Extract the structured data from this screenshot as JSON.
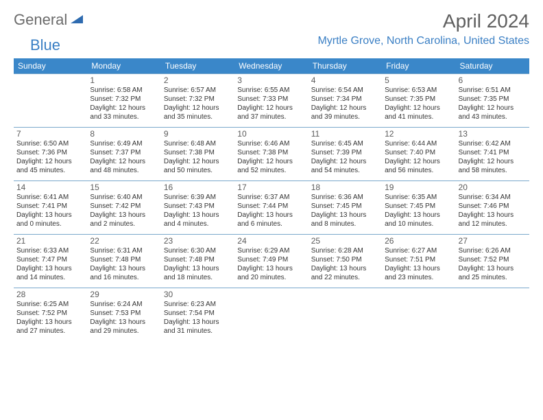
{
  "logo": {
    "text1": "General",
    "text2": "Blue"
  },
  "title": "April 2024",
  "location": "Myrtle Grove, North Carolina, United States",
  "colors": {
    "header_bg": "#3a87c9",
    "header_text": "#ffffff",
    "border": "#7aa8cc",
    "title_text": "#5f5f5f",
    "location_text": "#3a7fc4",
    "logo_gray": "#6b6b6b",
    "logo_blue": "#3a7fc4"
  },
  "weekdays": [
    "Sunday",
    "Monday",
    "Tuesday",
    "Wednesday",
    "Thursday",
    "Friday",
    "Saturday"
  ],
  "weeks": [
    [
      {
        "day": "",
        "sunrise": "",
        "sunset": "",
        "daylight1": "",
        "daylight2": ""
      },
      {
        "day": "1",
        "sunrise": "Sunrise: 6:58 AM",
        "sunset": "Sunset: 7:32 PM",
        "daylight1": "Daylight: 12 hours",
        "daylight2": "and 33 minutes."
      },
      {
        "day": "2",
        "sunrise": "Sunrise: 6:57 AM",
        "sunset": "Sunset: 7:32 PM",
        "daylight1": "Daylight: 12 hours",
        "daylight2": "and 35 minutes."
      },
      {
        "day": "3",
        "sunrise": "Sunrise: 6:55 AM",
        "sunset": "Sunset: 7:33 PM",
        "daylight1": "Daylight: 12 hours",
        "daylight2": "and 37 minutes."
      },
      {
        "day": "4",
        "sunrise": "Sunrise: 6:54 AM",
        "sunset": "Sunset: 7:34 PM",
        "daylight1": "Daylight: 12 hours",
        "daylight2": "and 39 minutes."
      },
      {
        "day": "5",
        "sunrise": "Sunrise: 6:53 AM",
        "sunset": "Sunset: 7:35 PM",
        "daylight1": "Daylight: 12 hours",
        "daylight2": "and 41 minutes."
      },
      {
        "day": "6",
        "sunrise": "Sunrise: 6:51 AM",
        "sunset": "Sunset: 7:35 PM",
        "daylight1": "Daylight: 12 hours",
        "daylight2": "and 43 minutes."
      }
    ],
    [
      {
        "day": "7",
        "sunrise": "Sunrise: 6:50 AM",
        "sunset": "Sunset: 7:36 PM",
        "daylight1": "Daylight: 12 hours",
        "daylight2": "and 45 minutes."
      },
      {
        "day": "8",
        "sunrise": "Sunrise: 6:49 AM",
        "sunset": "Sunset: 7:37 PM",
        "daylight1": "Daylight: 12 hours",
        "daylight2": "and 48 minutes."
      },
      {
        "day": "9",
        "sunrise": "Sunrise: 6:48 AM",
        "sunset": "Sunset: 7:38 PM",
        "daylight1": "Daylight: 12 hours",
        "daylight2": "and 50 minutes."
      },
      {
        "day": "10",
        "sunrise": "Sunrise: 6:46 AM",
        "sunset": "Sunset: 7:38 PM",
        "daylight1": "Daylight: 12 hours",
        "daylight2": "and 52 minutes."
      },
      {
        "day": "11",
        "sunrise": "Sunrise: 6:45 AM",
        "sunset": "Sunset: 7:39 PM",
        "daylight1": "Daylight: 12 hours",
        "daylight2": "and 54 minutes."
      },
      {
        "day": "12",
        "sunrise": "Sunrise: 6:44 AM",
        "sunset": "Sunset: 7:40 PM",
        "daylight1": "Daylight: 12 hours",
        "daylight2": "and 56 minutes."
      },
      {
        "day": "13",
        "sunrise": "Sunrise: 6:42 AM",
        "sunset": "Sunset: 7:41 PM",
        "daylight1": "Daylight: 12 hours",
        "daylight2": "and 58 minutes."
      }
    ],
    [
      {
        "day": "14",
        "sunrise": "Sunrise: 6:41 AM",
        "sunset": "Sunset: 7:41 PM",
        "daylight1": "Daylight: 13 hours",
        "daylight2": "and 0 minutes."
      },
      {
        "day": "15",
        "sunrise": "Sunrise: 6:40 AM",
        "sunset": "Sunset: 7:42 PM",
        "daylight1": "Daylight: 13 hours",
        "daylight2": "and 2 minutes."
      },
      {
        "day": "16",
        "sunrise": "Sunrise: 6:39 AM",
        "sunset": "Sunset: 7:43 PM",
        "daylight1": "Daylight: 13 hours",
        "daylight2": "and 4 minutes."
      },
      {
        "day": "17",
        "sunrise": "Sunrise: 6:37 AM",
        "sunset": "Sunset: 7:44 PM",
        "daylight1": "Daylight: 13 hours",
        "daylight2": "and 6 minutes."
      },
      {
        "day": "18",
        "sunrise": "Sunrise: 6:36 AM",
        "sunset": "Sunset: 7:45 PM",
        "daylight1": "Daylight: 13 hours",
        "daylight2": "and 8 minutes."
      },
      {
        "day": "19",
        "sunrise": "Sunrise: 6:35 AM",
        "sunset": "Sunset: 7:45 PM",
        "daylight1": "Daylight: 13 hours",
        "daylight2": "and 10 minutes."
      },
      {
        "day": "20",
        "sunrise": "Sunrise: 6:34 AM",
        "sunset": "Sunset: 7:46 PM",
        "daylight1": "Daylight: 13 hours",
        "daylight2": "and 12 minutes."
      }
    ],
    [
      {
        "day": "21",
        "sunrise": "Sunrise: 6:33 AM",
        "sunset": "Sunset: 7:47 PM",
        "daylight1": "Daylight: 13 hours",
        "daylight2": "and 14 minutes."
      },
      {
        "day": "22",
        "sunrise": "Sunrise: 6:31 AM",
        "sunset": "Sunset: 7:48 PM",
        "daylight1": "Daylight: 13 hours",
        "daylight2": "and 16 minutes."
      },
      {
        "day": "23",
        "sunrise": "Sunrise: 6:30 AM",
        "sunset": "Sunset: 7:48 PM",
        "daylight1": "Daylight: 13 hours",
        "daylight2": "and 18 minutes."
      },
      {
        "day": "24",
        "sunrise": "Sunrise: 6:29 AM",
        "sunset": "Sunset: 7:49 PM",
        "daylight1": "Daylight: 13 hours",
        "daylight2": "and 20 minutes."
      },
      {
        "day": "25",
        "sunrise": "Sunrise: 6:28 AM",
        "sunset": "Sunset: 7:50 PM",
        "daylight1": "Daylight: 13 hours",
        "daylight2": "and 22 minutes."
      },
      {
        "day": "26",
        "sunrise": "Sunrise: 6:27 AM",
        "sunset": "Sunset: 7:51 PM",
        "daylight1": "Daylight: 13 hours",
        "daylight2": "and 23 minutes."
      },
      {
        "day": "27",
        "sunrise": "Sunrise: 6:26 AM",
        "sunset": "Sunset: 7:52 PM",
        "daylight1": "Daylight: 13 hours",
        "daylight2": "and 25 minutes."
      }
    ],
    [
      {
        "day": "28",
        "sunrise": "Sunrise: 6:25 AM",
        "sunset": "Sunset: 7:52 PM",
        "daylight1": "Daylight: 13 hours",
        "daylight2": "and 27 minutes."
      },
      {
        "day": "29",
        "sunrise": "Sunrise: 6:24 AM",
        "sunset": "Sunset: 7:53 PM",
        "daylight1": "Daylight: 13 hours",
        "daylight2": "and 29 minutes."
      },
      {
        "day": "30",
        "sunrise": "Sunrise: 6:23 AM",
        "sunset": "Sunset: 7:54 PM",
        "daylight1": "Daylight: 13 hours",
        "daylight2": "and 31 minutes."
      },
      {
        "day": "",
        "sunrise": "",
        "sunset": "",
        "daylight1": "",
        "daylight2": ""
      },
      {
        "day": "",
        "sunrise": "",
        "sunset": "",
        "daylight1": "",
        "daylight2": ""
      },
      {
        "day": "",
        "sunrise": "",
        "sunset": "",
        "daylight1": "",
        "daylight2": ""
      },
      {
        "day": "",
        "sunrise": "",
        "sunset": "",
        "daylight1": "",
        "daylight2": ""
      }
    ]
  ]
}
